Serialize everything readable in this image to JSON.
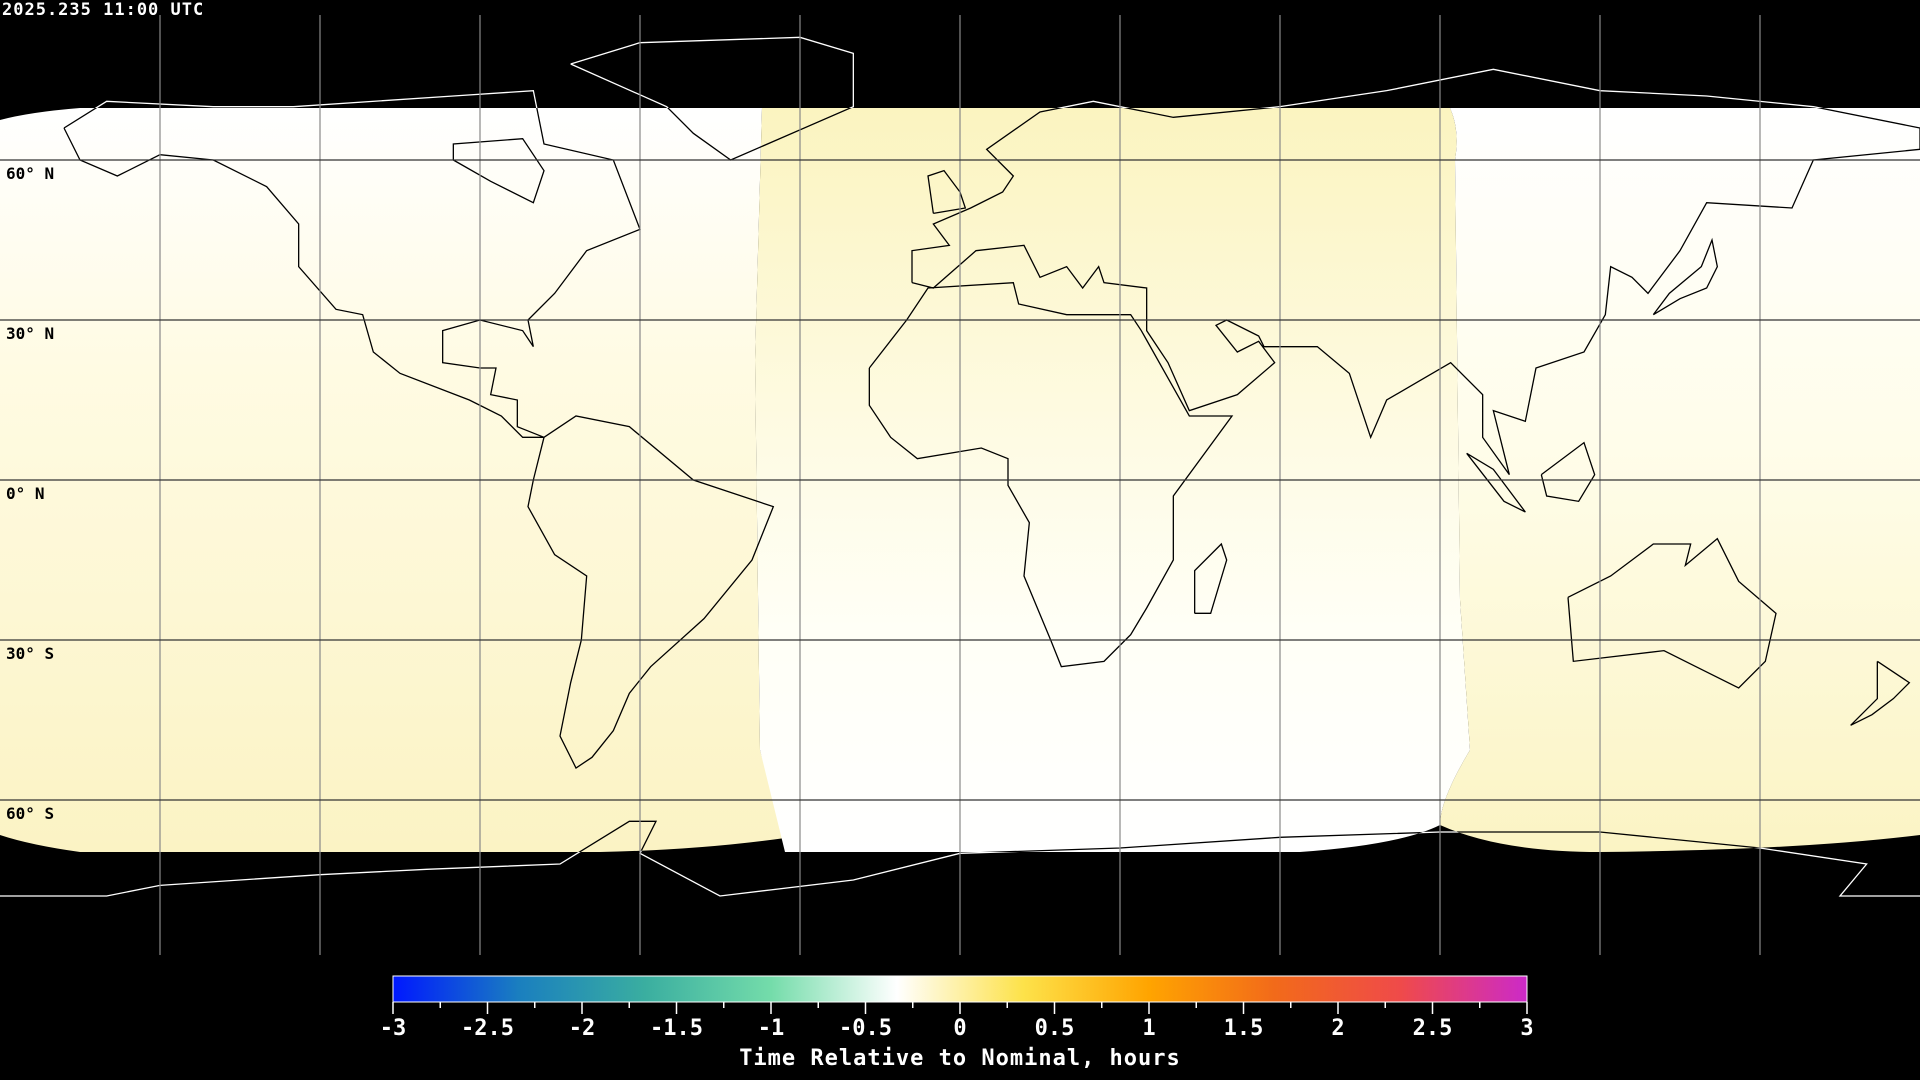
{
  "timestamp": "2025.235 11:00 UTC",
  "latitude_labels": [
    "60° N",
    "30° N",
    "0° N",
    "30° S",
    "60° S"
  ],
  "colors": {
    "no_data": "#000000",
    "coverage_white": "#fffff8",
    "coverage_yellow": "#fbf7c8",
    "grid": "#000000"
  },
  "colorbar": {
    "title": "Time Relative to Nominal, hours",
    "min": -3,
    "max": 3,
    "tick_labels": [
      "-3",
      "-2.5",
      "-2",
      "-1.5",
      "-1",
      "-0.5",
      "0",
      "0.5",
      "1",
      "1.5",
      "2",
      "2.5",
      "3"
    ],
    "colormap": [
      "#0018ff",
      "#1a7fbf",
      "#3aaea0",
      "#74dcaa",
      "#ffffff",
      "#fde24a",
      "#ffa400",
      "#f26a1a",
      "#ef4a4a",
      "#cc2ac8"
    ]
  }
}
